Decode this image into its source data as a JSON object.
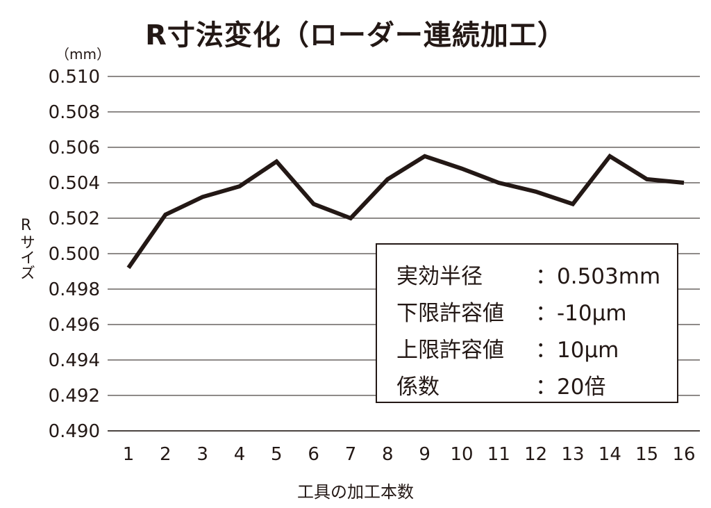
{
  "chart_data": {
    "type": "line",
    "title": "R寸法変化（ローダー連続加工）",
    "unit": "（mm）",
    "ylabel": "Rサイズ",
    "xlabel": "工具の加工本数",
    "ylim": [
      0.49,
      0.51
    ],
    "yticks": [
      "0.510",
      "0.508",
      "0.506",
      "0.504",
      "0.502",
      "0.500",
      "0.498",
      "0.496",
      "0.494",
      "0.492",
      "0.490"
    ],
    "categories": [
      "1",
      "2",
      "3",
      "4",
      "5",
      "6",
      "7",
      "8",
      "9",
      "10",
      "11",
      "12",
      "13",
      "14",
      "15",
      "16"
    ],
    "values": [
      0.4992,
      0.5022,
      0.5032,
      0.5038,
      0.5052,
      0.5028,
      0.502,
      0.5042,
      0.5055,
      0.5048,
      0.504,
      0.5035,
      0.5028,
      0.5055,
      0.5042,
      0.504
    ],
    "grid": true,
    "line_color": "#231815"
  },
  "info_box": [
    {
      "label": "実効半径",
      "value": "：0.503mm"
    },
    {
      "label": "下限許容値",
      "value": "：-10μm"
    },
    {
      "label": "上限許容値",
      "value": "：10μm"
    },
    {
      "label": "係数",
      "value": "：20倍"
    }
  ]
}
